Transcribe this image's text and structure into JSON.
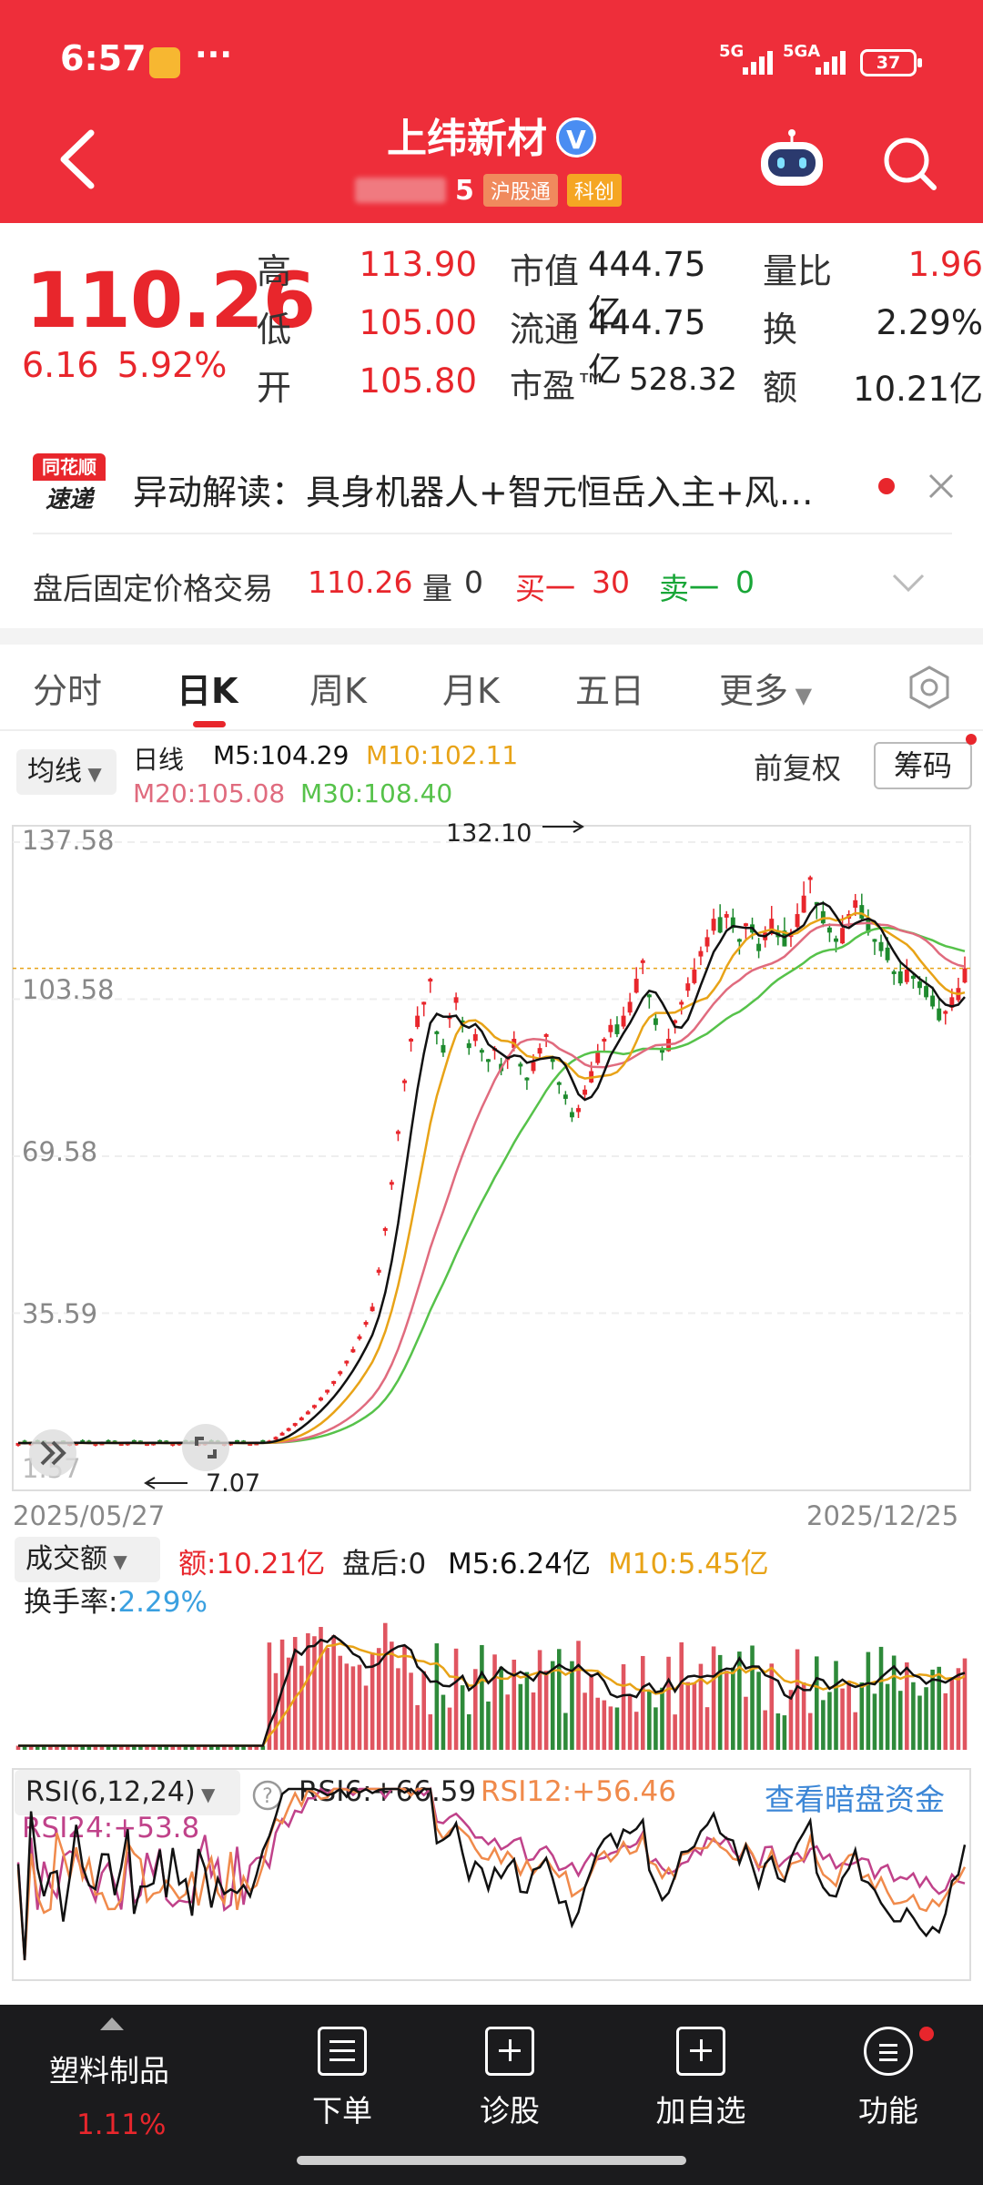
{
  "status_bar": {
    "time": "6:57",
    "dots": "···",
    "network1": "5G",
    "network2": "5GA",
    "battery": "37"
  },
  "header": {
    "title": "上纬新材",
    "verified_mark": "V",
    "code": "5",
    "tag_hk": "沪股通",
    "tag_star": "科创"
  },
  "quote": {
    "price": "110.26",
    "change": "6.16",
    "change_pct": "5.92%",
    "high_label": "高",
    "high": "113.90",
    "low_label": "低",
    "low": "105.00",
    "open_label": "开",
    "open": "105.80",
    "mcap_label": "市值",
    "mcap": "444.75亿",
    "float_label": "流通",
    "float": "444.75亿",
    "pe_label": "市盈™",
    "pe": "528.32",
    "vr_label": "量比",
    "vr": "1.96",
    "turn_label": "换",
    "turn": "2.29%",
    "amt_label": "额",
    "amt": "10.21亿"
  },
  "news": {
    "logo_top": "同花顺",
    "logo_bottom": "速递",
    "text": "异动解读：具身机器人+智元恒岳入主+风…"
  },
  "after_hours": {
    "label": "盘后固定价格交易",
    "price": "110.26",
    "vol_label": "量",
    "vol": "0",
    "bid_label": "买一",
    "bid": "30",
    "ask_label": "卖一",
    "ask": "0"
  },
  "tabs": [
    "分时",
    "日K",
    "周K",
    "月K",
    "五日",
    "更多"
  ],
  "legend": {
    "ma_btn": "均线",
    "period": "日线",
    "m5": "M5:104.29",
    "m10": "M10:102.11",
    "m20": "M20:105.08",
    "m30": "M30:108.40",
    "adjust": "前复权",
    "chip": "筹码"
  },
  "chart_data": [
    {
      "type": "candlestick",
      "title": "",
      "x_start": "2025/05/27",
      "x_end": "2025/12/25",
      "y_ticks": [
        "137.58",
        "103.58",
        "69.58",
        "35.59"
      ],
      "bottom_tick": "1.57",
      "high_marker": "132.10",
      "low_marker": "7.07",
      "ylim": [
        1.57,
        137.58
      ],
      "ma_colors": {
        "M5": "#111111",
        "M10": "#e8a317",
        "M20": "#e06b7e",
        "M30": "#56c24a"
      },
      "close_series": [
        7.5,
        7.4,
        7.6,
        7.5,
        7.4,
        7.5,
        7.6,
        7.4,
        7.5,
        7.6,
        7.5,
        7.4,
        7.5,
        7.6,
        7.5,
        7.4,
        7.5,
        7.6,
        7.5,
        7.4,
        7.5,
        7.6,
        7.5,
        7.4,
        7.5,
        7.6,
        7.5,
        7.4,
        7.5,
        7.6,
        7.5,
        7.4,
        7.5,
        7.6,
        7.5,
        7.4,
        7.5,
        7.6,
        7.5,
        8.0,
        8.8,
        9.7,
        10.7,
        11.8,
        13.0,
        14.3,
        15.7,
        17.3,
        19.0,
        20.9,
        23.0,
        25.3,
        27.8,
        30.6,
        33.7,
        37.0,
        45.0,
        54.0,
        64.0,
        75.0,
        86.0,
        95.0,
        100.0,
        103.0,
        108.0,
        96.0,
        92.0,
        100.0,
        104.0,
        98.0,
        93.0,
        96.0,
        92.0,
        90.0,
        93.0,
        88.0,
        91.0,
        95.0,
        89.0,
        86.0,
        90.0,
        93.0,
        96.0,
        90.0,
        85.0,
        82.0,
        78.0,
        80.0,
        84.0,
        88.0,
        92.0,
        95.0,
        98.0,
        96.0,
        100.0,
        103.0,
        108.0,
        112.0,
        104.0,
        98.0,
        92.0,
        95.0,
        99.0,
        103.0,
        107.0,
        110.0,
        114.0,
        117.0,
        121.0,
        118.0,
        122.0,
        119.0,
        116.0,
        120.0,
        118.0,
        114.0,
        118.0,
        121.0,
        117.0,
        115.0,
        118.0,
        122.0,
        126.0,
        130.0,
        124.0,
        120.0,
        118.0,
        116.0,
        119.0,
        122.0,
        125.0,
        121.0,
        118.0,
        116.0,
        114.0,
        112.0,
        109.0,
        107.0,
        110.0,
        108.0,
        106.0,
        104.0,
        102.0,
        99.0,
        101.0,
        104.0,
        106.0,
        110.26
      ]
    },
    {
      "type": "bar",
      "title": "成交额",
      "labels": {
        "amount": "额:10.21亿",
        "after": "盘后:0",
        "m5": "M5:6.24亿",
        "m10": "M10:5.45亿",
        "turnover_label": "换手率:",
        "turnover": "2.29%"
      }
    },
    {
      "type": "line",
      "title": "RSI(6,12,24)",
      "labels": {
        "rsi6": "RSI6:+66.59",
        "rsi12": "RSI12:+56.46",
        "rsi24": "RSI24:+53.8",
        "link": "查看暗盘资金"
      }
    }
  ],
  "bottom_bar": {
    "sector": "塑料制品",
    "sector_pct": "1.11%",
    "order": "下单",
    "diagnose": "诊股",
    "add_fav": "加自选",
    "function": "功能"
  }
}
